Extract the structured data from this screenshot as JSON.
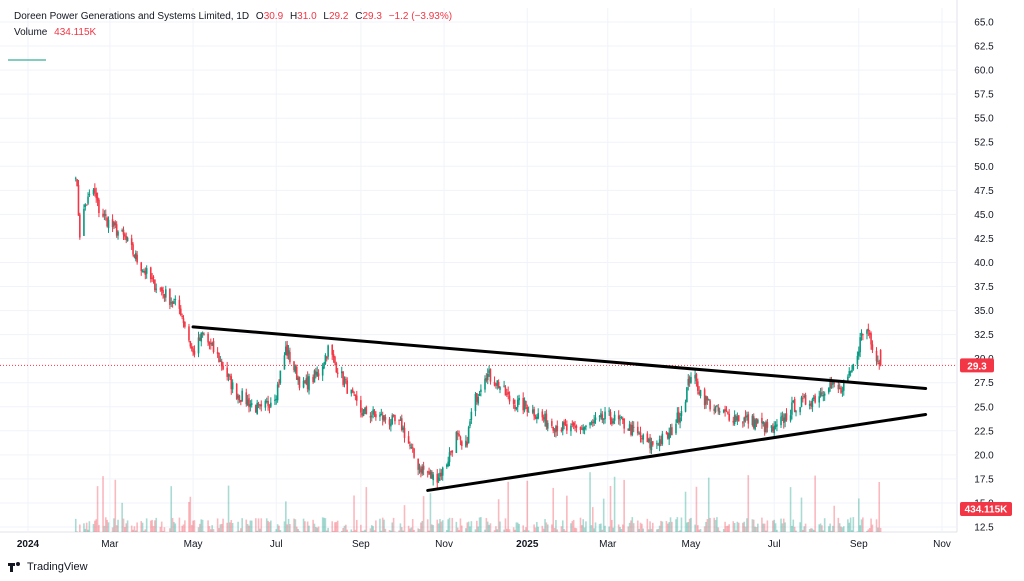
{
  "legend": {
    "symbol": "Doreen Power Generations and Systems Limited, 1D",
    "open_key": "O",
    "open": "30.9",
    "high_key": "H",
    "high": "31.0",
    "low_key": "L",
    "low": "29.2",
    "close_key": "C",
    "close": "29.3",
    "change": "−1.2 (−3.93%)",
    "volume_key": "Volume",
    "volume": "434.115K"
  },
  "price_tag": "29.3",
  "volume_tag": "434.115K",
  "brand": "TradingView",
  "colors": {
    "up": "#089981",
    "down": "#f23645",
    "trendline": "#000000",
    "grid": "#f0f3fa",
    "text": "#131722"
  },
  "chart_data": {
    "type": "candlestick",
    "x_ticks": [
      {
        "label": "2024",
        "date": "2024-01-01",
        "bold": true
      },
      {
        "label": "Mar",
        "date": "2024-03-01"
      },
      {
        "label": "May",
        "date": "2024-05-01"
      },
      {
        "label": "Jul",
        "date": "2024-07-01"
      },
      {
        "label": "Sep",
        "date": "2024-09-01"
      },
      {
        "label": "Nov",
        "date": "2024-11-01"
      },
      {
        "label": "2025",
        "date": "2025-01-01",
        "bold": true
      },
      {
        "label": "Mar",
        "date": "2025-03-01"
      },
      {
        "label": "May",
        "date": "2025-05-01"
      },
      {
        "label": "Jul",
        "date": "2025-07-01"
      },
      {
        "label": "Sep",
        "date": "2025-09-01"
      },
      {
        "label": "Nov",
        "date": "2025-11-01"
      }
    ],
    "y_ticks": [
      "12.5",
      "15.0",
      "17.5",
      "20.0",
      "22.5",
      "25.0",
      "27.5",
      "30.0",
      "32.5",
      "35.0",
      "37.5",
      "40.0",
      "42.5",
      "45.0",
      "47.5",
      "50.0",
      "52.5",
      "55.0",
      "57.5",
      "60.0",
      "62.5",
      "65.0"
    ],
    "y_range": [
      12.5,
      65.0
    ],
    "last_close": 29.3,
    "price_path": [
      [
        "2024-02-05",
        49.5
      ],
      [
        "2024-02-08",
        43.0
      ],
      [
        "2024-02-12",
        46.0
      ],
      [
        "2024-02-18",
        47.5
      ],
      [
        "2024-02-22",
        45.5
      ],
      [
        "2024-03-01",
        44.0
      ],
      [
        "2024-03-12",
        42.5
      ],
      [
        "2024-03-22",
        40.0
      ],
      [
        "2024-04-01",
        38.0
      ],
      [
        "2024-04-12",
        36.5
      ],
      [
        "2024-04-22",
        35.0
      ],
      [
        "2024-05-01",
        30.5
      ],
      [
        "2024-05-08",
        32.5
      ],
      [
        "2024-05-20",
        30.0
      ],
      [
        "2024-06-01",
        26.5
      ],
      [
        "2024-06-20",
        24.5
      ],
      [
        "2024-07-01",
        26.5
      ],
      [
        "2024-07-08",
        31.0
      ],
      [
        "2024-07-20",
        27.0
      ],
      [
        "2024-08-01",
        28.5
      ],
      [
        "2024-08-08",
        31.0
      ],
      [
        "2024-08-20",
        27.5
      ],
      [
        "2024-09-01",
        24.5
      ],
      [
        "2024-09-15",
        24.0
      ],
      [
        "2024-10-01",
        23.0
      ],
      [
        "2024-10-12",
        19.0
      ],
      [
        "2024-10-25",
        17.5
      ],
      [
        "2024-11-01",
        18.5
      ],
      [
        "2024-11-10",
        22.0
      ],
      [
        "2024-11-16",
        20.0
      ],
      [
        "2024-11-22",
        25.0
      ],
      [
        "2024-12-01",
        28.5
      ],
      [
        "2024-12-10",
        27.5
      ],
      [
        "2024-12-20",
        25.5
      ],
      [
        "2025-01-01",
        25.0
      ],
      [
        "2025-01-15",
        23.5
      ],
      [
        "2025-02-01",
        22.5
      ],
      [
        "2025-02-15",
        23.0
      ],
      [
        "2025-03-01",
        24.0
      ],
      [
        "2025-03-15",
        23.0
      ],
      [
        "2025-04-01",
        21.0
      ],
      [
        "2025-04-15",
        22.0
      ],
      [
        "2025-04-25",
        25.0
      ],
      [
        "2025-05-01",
        28.5
      ],
      [
        "2025-05-10",
        26.0
      ],
      [
        "2025-05-20",
        24.5
      ],
      [
        "2025-06-01",
        24.0
      ],
      [
        "2025-06-15",
        23.5
      ],
      [
        "2025-07-01",
        22.5
      ],
      [
        "2025-07-15",
        25.0
      ],
      [
        "2025-08-01",
        26.0
      ],
      [
        "2025-08-10",
        27.5
      ],
      [
        "2025-08-20",
        26.5
      ],
      [
        "2025-08-28",
        29.0
      ],
      [
        "2025-09-03",
        32.5
      ],
      [
        "2025-09-08",
        33.0
      ],
      [
        "2025-09-12",
        31.0
      ],
      [
        "2025-09-17",
        29.3
      ]
    ],
    "volume_max_k": 1900,
    "trendlines": [
      {
        "name": "upper-resistance",
        "from": [
          "2024-05-01",
          33.3
        ],
        "to": [
          "2025-10-20",
          26.9
        ]
      },
      {
        "name": "lower-support",
        "from": [
          "2024-10-20",
          16.3
        ],
        "to": [
          "2025-10-20",
          24.2
        ]
      }
    ]
  }
}
